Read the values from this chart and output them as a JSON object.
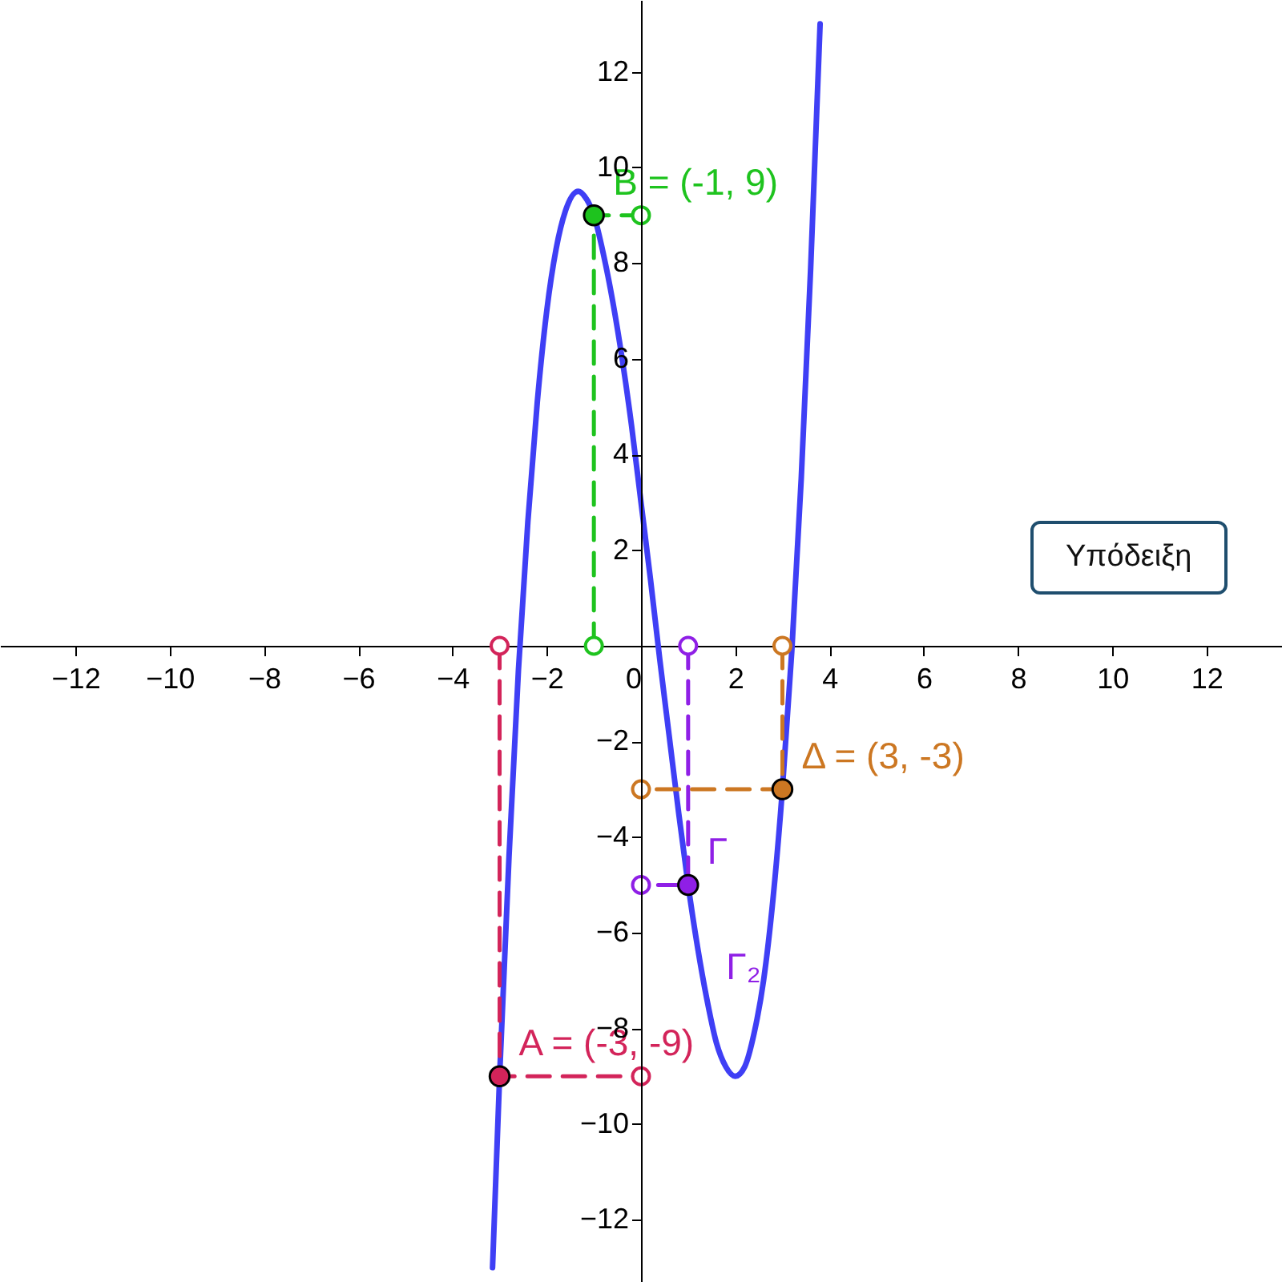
{
  "chart_data": {
    "type": "line",
    "xlim": [
      -13.6,
      13.6
    ],
    "ylim": [
      -13.3,
      13.5
    ],
    "xticks": [
      -12,
      -10,
      -8,
      -6,
      -4,
      -2,
      0,
      2,
      4,
      6,
      8,
      10,
      12
    ],
    "yticks": [
      -12,
      -10,
      -8,
      -6,
      -4,
      -2,
      2,
      4,
      6,
      8,
      10,
      12
    ],
    "grid": false,
    "series": [
      {
        "color": "#3f3ff5",
        "x": [
          -3.15,
          -3,
          -2.8,
          -2.6,
          -2.4,
          -2.2,
          -2,
          -1.8,
          -1.6,
          -1.33,
          -1.2,
          -1,
          -0.8,
          -0.6,
          -0.4,
          -0.2,
          0,
          0.2,
          0.4,
          0.6,
          0.8,
          1,
          1.2,
          1.4,
          1.6,
          1.8,
          2,
          2.2,
          2.4,
          2.6,
          2.8,
          3,
          3.2,
          3.4,
          3.6,
          3.8
        ],
        "values": [
          -13,
          -9,
          -4.4,
          -0.5,
          2.6,
          5.1,
          7,
          8.3,
          9.1,
          9.5,
          9.4,
          9,
          8.2,
          7.2,
          6,
          4.6,
          3,
          1.4,
          -0.3,
          -1.9,
          -3.5,
          -5,
          -6.3,
          -7.4,
          -8.3,
          -8.8,
          -9,
          -8.8,
          -8.1,
          -7,
          -5.3,
          -3,
          -0.1,
          3.5,
          7.9,
          13
        ]
      },
      {
        "type": "line",
        "line_style": "dashed",
        "marker": "circle",
        "color": "#d3245a",
        "x": [
          -3,
          -3,
          0
        ],
        "values": [
          0,
          -9,
          -9
        ]
      },
      {
        "type": "line",
        "line_style": "dashed",
        "marker": "circle",
        "color": "#1ec31e",
        "x": [
          -1,
          -1,
          0
        ],
        "values": [
          0,
          9,
          9
        ]
      },
      {
        "type": "line",
        "line_style": "dashed",
        "marker": "circle",
        "color": "#8f1fe6",
        "x": [
          1,
          1,
          0
        ],
        "values": [
          0,
          -5,
          -5
        ]
      },
      {
        "type": "line",
        "line_style": "dashed",
        "marker": "circle",
        "color": "#cc7722",
        "x": [
          3,
          3,
          0
        ],
        "values": [
          0,
          -3,
          -3
        ]
      },
      {
        "type": "scatter",
        "color": "#d3245a",
        "x": [
          -3
        ],
        "values": [
          -9
        ]
      },
      {
        "type": "scatter",
        "color": "#1ec31e",
        "x": [
          -1
        ],
        "values": [
          9
        ]
      },
      {
        "type": "scatter",
        "color": "#8f1fe6",
        "x": [
          1
        ],
        "values": [
          -5
        ]
      },
      {
        "type": "scatter",
        "color": "#cc7722",
        "x": [
          3
        ],
        "values": [
          -3
        ]
      }
    ],
    "annotations": [
      {
        "text": "A = (-3, -9)",
        "x": -3,
        "y": -9
      },
      {
        "text": "B = (-1, 9)",
        "x": -1,
        "y": 9
      },
      {
        "text": "Γ",
        "x": 1,
        "y": -5
      },
      {
        "text": "Γ₂",
        "x": 1.4,
        "y": -7.4
      },
      {
        "text": "Δ = (3, -3)",
        "x": 3,
        "y": -3
      },
      "Υπόδειξη"
    ]
  }
}
